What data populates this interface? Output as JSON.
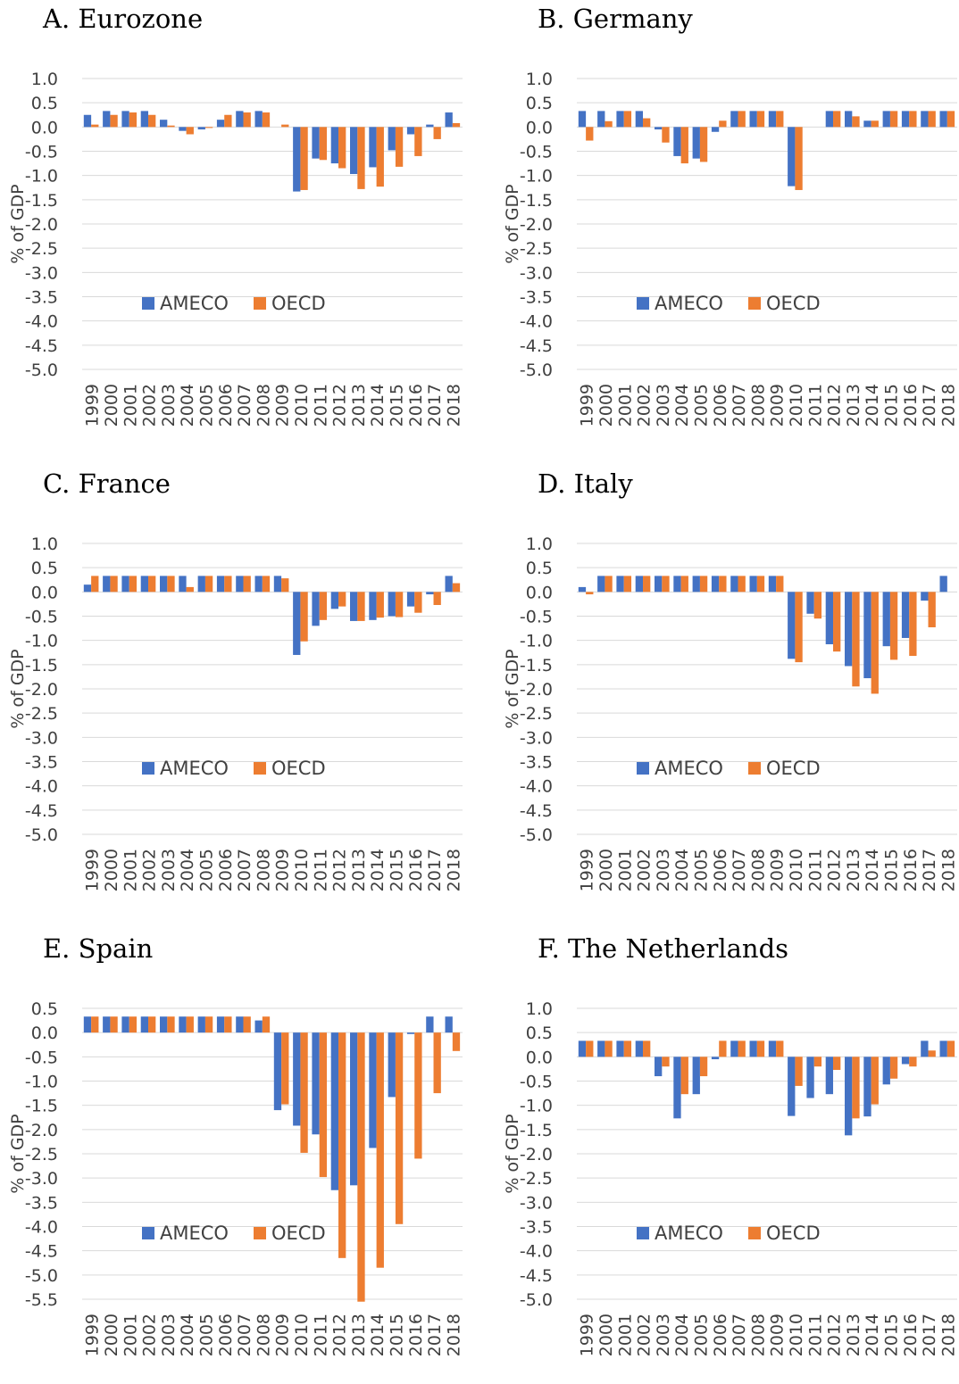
{
  "colors": {
    "ameco": "#4472C4",
    "oecd": "#ED7D31",
    "grid": "#D9D9D9",
    "text": "#404040"
  },
  "chart_data": [
    {
      "type": "bar",
      "title": "A.  Eurozone",
      "ylabel": "% of GDP",
      "ylim": [
        -5.0,
        1.0
      ],
      "yticks": [
        "1.0",
        "0.5",
        "0.0",
        "-0.5",
        "-1.0",
        "-1.5",
        "-2.0",
        "-2.5",
        "-3.0",
        "-3.5",
        "-4.0",
        "-4.5",
        "-5.0"
      ],
      "categories": [
        "1999",
        "2000",
        "2001",
        "2002",
        "2003",
        "2004",
        "2005",
        "2006",
        "2007",
        "2008",
        "2009",
        "2010",
        "2011",
        "2012",
        "2013",
        "2014",
        "2015",
        "2016",
        "2017",
        "2018"
      ],
      "series": [
        {
          "name": "AMECO",
          "values": [
            0.25,
            0.33,
            0.33,
            0.33,
            0.15,
            -0.08,
            -0.05,
            0.15,
            0.33,
            0.33,
            0.0,
            -1.33,
            -0.65,
            -0.75,
            -0.97,
            -0.83,
            -0.48,
            -0.15,
            0.05,
            0.3
          ]
        },
        {
          "name": "OECD",
          "values": [
            0.05,
            0.25,
            0.3,
            0.25,
            0.03,
            -0.15,
            -0.02,
            0.25,
            0.3,
            0.3,
            0.05,
            -1.3,
            -0.68,
            -0.85,
            -1.28,
            -1.23,
            -0.82,
            -0.6,
            -0.25,
            0.08
          ]
        }
      ],
      "grid": true,
      "legend": "inside-lower-center"
    },
    {
      "type": "bar",
      "title": "B.  Germany",
      "ylabel": "% of GDP",
      "ylim": [
        -5.0,
        1.0
      ],
      "yticks": [
        "1.0",
        "0.5",
        "0.0",
        "-0.5",
        "-1.0",
        "-1.5",
        "-2.0",
        "-2.5",
        "-3.0",
        "-3.5",
        "-4.0",
        "-4.5",
        "-5.0"
      ],
      "categories": [
        "1999",
        "2000",
        "2001",
        "2002",
        "2003",
        "2004",
        "2005",
        "2006",
        "2007",
        "2008",
        "2009",
        "2010",
        "2011",
        "2012",
        "2013",
        "2014",
        "2015",
        "2016",
        "2017",
        "2018"
      ],
      "series": [
        {
          "name": "AMECO",
          "values": [
            0.33,
            0.33,
            0.33,
            0.33,
            -0.05,
            -0.6,
            -0.65,
            -0.1,
            0.33,
            0.33,
            0.33,
            -1.22,
            0.0,
            0.33,
            0.33,
            0.13,
            0.33,
            0.33,
            0.33,
            0.33
          ]
        },
        {
          "name": "OECD",
          "values": [
            -0.28,
            0.12,
            0.33,
            0.18,
            -0.32,
            -0.75,
            -0.72,
            0.13,
            0.33,
            0.33,
            0.33,
            -1.3,
            0.0,
            0.33,
            0.22,
            0.13,
            0.33,
            0.33,
            0.33,
            0.33
          ]
        }
      ],
      "grid": true,
      "legend": "inside-lower-center"
    },
    {
      "type": "bar",
      "title": "C.  France",
      "ylabel": "% of GDP",
      "ylim": [
        -5.0,
        1.0
      ],
      "yticks": [
        "1.0",
        "0.5",
        "0.0",
        "-0.5",
        "-1.0",
        "-1.5",
        "-2.0",
        "-2.5",
        "-3.0",
        "-3.5",
        "-4.0",
        "-4.5",
        "-5.0"
      ],
      "categories": [
        "1999",
        "2000",
        "2001",
        "2002",
        "2003",
        "2004",
        "2005",
        "2006",
        "2007",
        "2008",
        "2009",
        "2010",
        "2011",
        "2012",
        "2013",
        "2014",
        "2015",
        "2016",
        "2017",
        "2018"
      ],
      "series": [
        {
          "name": "AMECO",
          "values": [
            0.15,
            0.33,
            0.33,
            0.33,
            0.33,
            0.33,
            0.33,
            0.33,
            0.33,
            0.33,
            0.33,
            -1.3,
            -0.7,
            -0.35,
            -0.6,
            -0.58,
            -0.5,
            -0.3,
            -0.05,
            0.33
          ]
        },
        {
          "name": "OECD",
          "values": [
            0.33,
            0.33,
            0.33,
            0.33,
            0.33,
            0.1,
            0.33,
            0.33,
            0.33,
            0.33,
            0.28,
            -1.02,
            -0.58,
            -0.3,
            -0.6,
            -0.53,
            -0.52,
            -0.43,
            -0.27,
            0.18
          ]
        }
      ],
      "grid": true,
      "legend": "inside-lower-center"
    },
    {
      "type": "bar",
      "title": "D.  Italy",
      "ylabel": "% of GDP",
      "ylim": [
        -5.0,
        1.0
      ],
      "yticks": [
        "1.0",
        "0.5",
        "0.0",
        "-0.5",
        "-1.0",
        "-1.5",
        "-2.0",
        "-2.5",
        "-3.0",
        "-3.5",
        "-4.0",
        "-4.5",
        "-5.0"
      ],
      "categories": [
        "1999",
        "2000",
        "2001",
        "2002",
        "2003",
        "2004",
        "2005",
        "2006",
        "2007",
        "2008",
        "2009",
        "2010",
        "2011",
        "2012",
        "2013",
        "2014",
        "2015",
        "2016",
        "2017",
        "2018"
      ],
      "series": [
        {
          "name": "AMECO",
          "values": [
            0.1,
            0.33,
            0.33,
            0.33,
            0.33,
            0.33,
            0.33,
            0.33,
            0.33,
            0.33,
            0.33,
            -1.38,
            -0.45,
            -1.08,
            -1.53,
            -1.78,
            -1.12,
            -0.95,
            -0.18,
            0.33
          ]
        },
        {
          "name": "OECD",
          "values": [
            -0.05,
            0.33,
            0.33,
            0.33,
            0.33,
            0.33,
            0.33,
            0.33,
            0.33,
            0.33,
            0.33,
            -1.45,
            -0.55,
            -1.23,
            -1.95,
            -2.1,
            -1.4,
            -1.32,
            -0.73,
            0.0
          ]
        }
      ],
      "grid": true,
      "legend": "inside-lower-center"
    },
    {
      "type": "bar",
      "title": "E.  Spain",
      "ylabel": "% of GDP",
      "ylim": [
        -5.5,
        0.5
      ],
      "yticks": [
        "0.5",
        "0.0",
        "-0.5",
        "-1.0",
        "-1.5",
        "-2.0",
        "-2.5",
        "-3.0",
        "-3.5",
        "-4.0",
        "-4.5",
        "-5.0",
        "-5.5"
      ],
      "categories": [
        "1999",
        "2000",
        "2001",
        "2002",
        "2003",
        "2004",
        "2005",
        "2006",
        "2007",
        "2008",
        "2009",
        "2010",
        "2011",
        "2012",
        "2013",
        "2014",
        "2015",
        "2016",
        "2017",
        "2018"
      ],
      "series": [
        {
          "name": "AMECO",
          "values": [
            0.33,
            0.33,
            0.33,
            0.33,
            0.33,
            0.33,
            0.33,
            0.33,
            0.33,
            0.25,
            -1.6,
            -1.92,
            -2.1,
            -3.25,
            -3.15,
            -2.38,
            -1.33,
            -0.03,
            0.33,
            0.33
          ]
        },
        {
          "name": "OECD",
          "values": [
            0.33,
            0.33,
            0.33,
            0.33,
            0.33,
            0.33,
            0.33,
            0.33,
            0.33,
            0.33,
            -1.48,
            -2.48,
            -2.98,
            -4.65,
            -5.55,
            -4.85,
            -3.95,
            -2.6,
            -1.25,
            -0.38
          ]
        }
      ],
      "grid": true,
      "legend": "inside-lower-center"
    },
    {
      "type": "bar",
      "title": "F.  The Netherlands",
      "ylabel": "% of GDP",
      "ylim": [
        -5.0,
        1.0
      ],
      "yticks": [
        "1.0",
        "0.5",
        "0.0",
        "-0.5",
        "-1.0",
        "-1.5",
        "-2.0",
        "-2.5",
        "-3.0",
        "-3.5",
        "-4.0",
        "-4.5",
        "-5.0"
      ],
      "categories": [
        "1999",
        "2000",
        "2001",
        "2002",
        "2003",
        "2004",
        "2005",
        "2006",
        "2007",
        "2008",
        "2009",
        "2010",
        "2011",
        "2012",
        "2013",
        "2014",
        "2015",
        "2016",
        "2017",
        "2018"
      ],
      "series": [
        {
          "name": "AMECO",
          "values": [
            0.33,
            0.33,
            0.33,
            0.33,
            -0.4,
            -1.27,
            -0.77,
            -0.05,
            0.33,
            0.33,
            0.33,
            -1.22,
            -0.85,
            -0.77,
            -1.62,
            -1.23,
            -0.57,
            -0.15,
            0.33,
            0.33
          ]
        },
        {
          "name": "OECD",
          "values": [
            0.33,
            0.33,
            0.33,
            0.33,
            -0.2,
            -0.77,
            -0.4,
            0.33,
            0.33,
            0.33,
            0.33,
            -0.6,
            -0.2,
            -0.27,
            -1.27,
            -0.98,
            -0.45,
            -0.2,
            0.13,
            0.33
          ]
        }
      ],
      "grid": true,
      "legend": "inside-lower-center"
    }
  ]
}
